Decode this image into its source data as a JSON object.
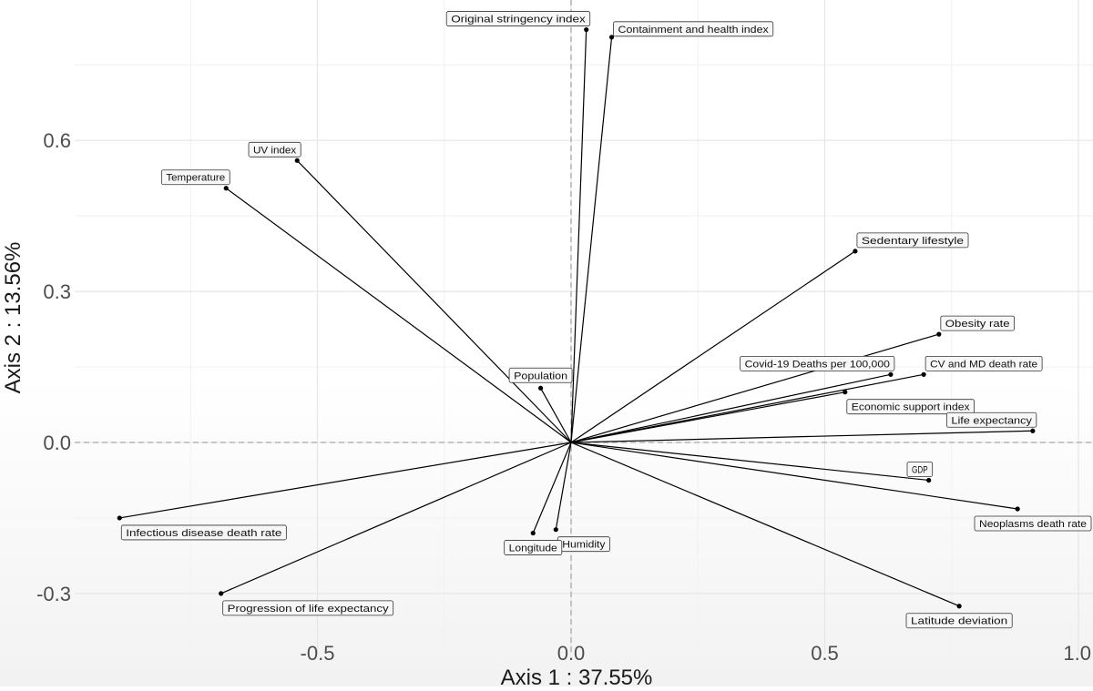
{
  "chart_data": {
    "type": "scatter",
    "subtype": "pca-variable-loadings",
    "xlabel": "Axis 1 : 37.55%",
    "ylabel": "Axis 2 : 13.56%",
    "xlim": [
      -0.9,
      1.0
    ],
    "ylim": [
      -0.37,
      0.84
    ],
    "xticks": [
      -0.5,
      0.0,
      0.5,
      1.0
    ],
    "xtick_labels": [
      "-0.5",
      "0.0",
      "0.5",
      "1.0"
    ],
    "yticks": [
      -0.3,
      0.0,
      0.3,
      0.6
    ],
    "ytick_labels": [
      "-0.3",
      "0.0",
      "0.3",
      "0.6"
    ],
    "grid": true,
    "reference_lines": [
      0,
      0
    ],
    "variables": [
      {
        "name": "Original stringency index",
        "x": 0.03,
        "y": 0.82,
        "label_pos": "left-above"
      },
      {
        "name": "Containment and health index",
        "x": 0.08,
        "y": 0.805,
        "label_pos": "right"
      },
      {
        "name": "UV index",
        "x": -0.54,
        "y": 0.56,
        "label_pos": "left-above"
      },
      {
        "name": "Temperature",
        "x": -0.68,
        "y": 0.505,
        "label_pos": "left-above"
      },
      {
        "name": "Sedentary lifestyle",
        "x": 0.56,
        "y": 0.38,
        "label_pos": "right-above"
      },
      {
        "name": "Obesity rate",
        "x": 0.725,
        "y": 0.215,
        "label_pos": "right-above"
      },
      {
        "name": "Covid-19 Deaths per 100,000",
        "x": 0.63,
        "y": 0.135,
        "label_pos": "left-above"
      },
      {
        "name": "CV and MD death rate",
        "x": 0.695,
        "y": 0.135,
        "label_pos": "right-above"
      },
      {
        "name": "Economic support index",
        "x": 0.54,
        "y": 0.1,
        "label_pos": "right-below"
      },
      {
        "name": "Population",
        "x": -0.06,
        "y": 0.108,
        "label_pos": "above"
      },
      {
        "name": "Life expectancy",
        "x": 0.91,
        "y": 0.023,
        "label_pos": "left-above"
      },
      {
        "name": "GDP",
        "x": 0.705,
        "y": -0.075,
        "label_pos": "left-above"
      },
      {
        "name": "Neoplasms death rate",
        "x": 0.88,
        "y": -0.132,
        "label_pos": "right-below"
      },
      {
        "name": "Humidity",
        "x": -0.03,
        "y": -0.173,
        "label_pos": "right-below"
      },
      {
        "name": "Longitude",
        "x": -0.075,
        "y": -0.18,
        "label_pos": "below"
      },
      {
        "name": "Infectious disease death rate",
        "x": -0.89,
        "y": -0.15,
        "label_pos": "right-below"
      },
      {
        "name": "Progression of life expectancy",
        "x": -0.69,
        "y": -0.3,
        "label_pos": "right-below"
      },
      {
        "name": "Latitude deviation",
        "x": 0.765,
        "y": -0.325,
        "label_pos": "below"
      }
    ]
  },
  "colors": {
    "background_top": "#ffffff",
    "background_bottom": "#f2f2f2",
    "grid_major": "#e6e6e6",
    "grid_minor": "#f1f1f1",
    "reference_line": "#a8a8a8",
    "arrow": "#000000",
    "label_fill": "#f7f7f7",
    "label_stroke": "#333333"
  }
}
